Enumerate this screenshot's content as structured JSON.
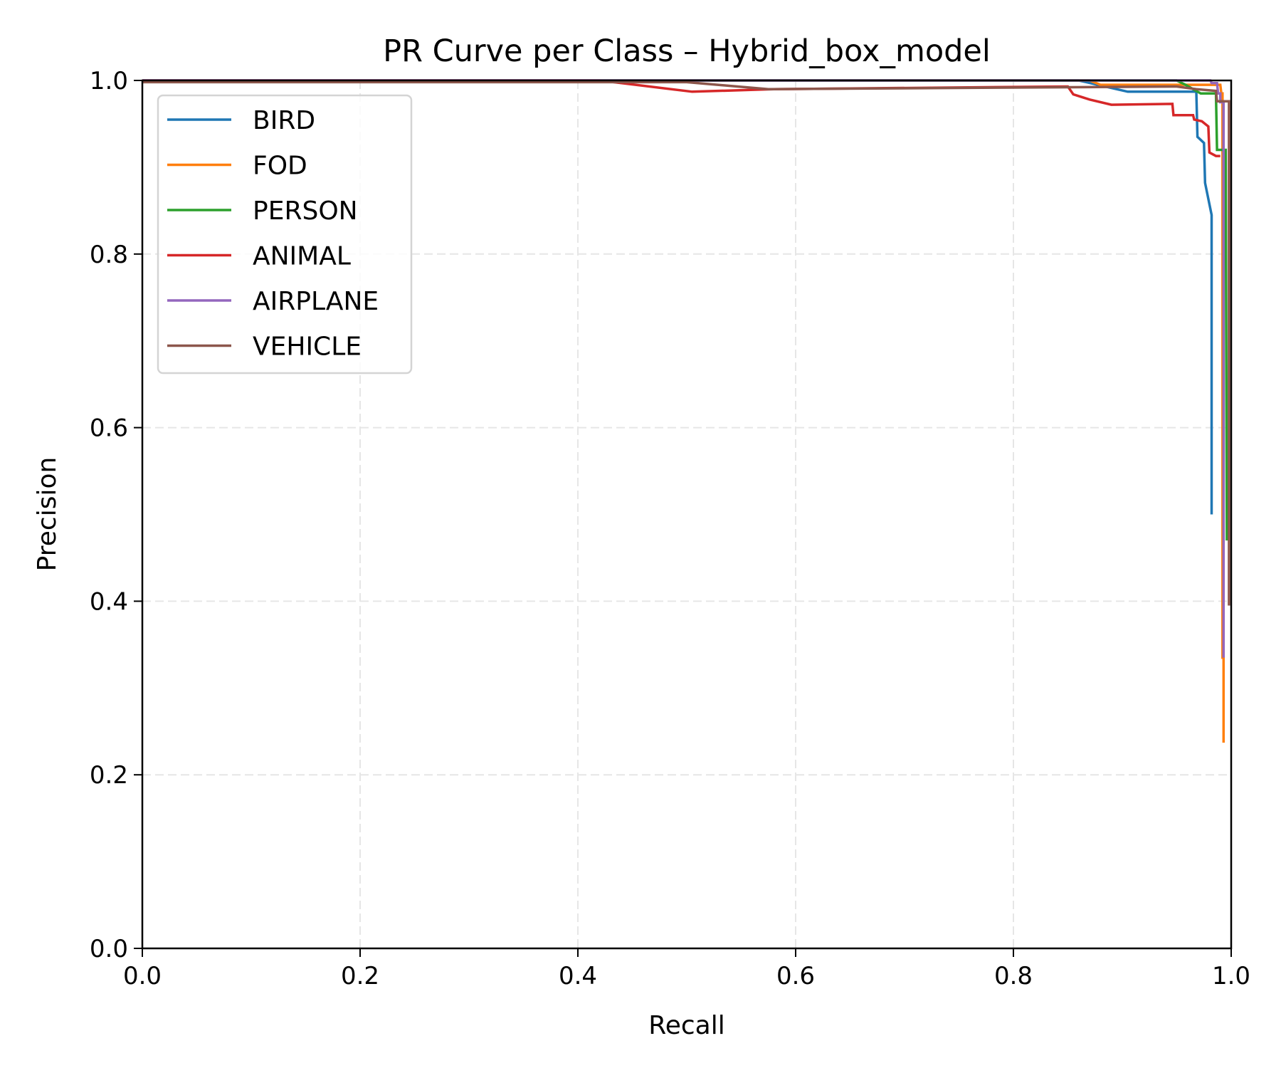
{
  "chart_data": {
    "type": "line",
    "title": "PR Curve per Class – Hybrid_box_model",
    "xlabel": "Recall",
    "ylabel": "Precision",
    "xlim": [
      0.0,
      1.0
    ],
    "ylim": [
      0.0,
      1.0
    ],
    "xticks": [
      "0.0",
      "0.2",
      "0.4",
      "0.6",
      "0.8",
      "1.0"
    ],
    "yticks": [
      "0.0",
      "0.2",
      "0.4",
      "0.6",
      "0.8",
      "1.0"
    ],
    "grid": true,
    "legend_position": "upper left",
    "series": [
      {
        "name": "BIRD",
        "color": "#1f77b4",
        "points": [
          [
            0.0,
            1.0
          ],
          [
            0.86,
            1.0
          ],
          [
            0.905,
            0.987
          ],
          [
            0.968,
            0.987
          ],
          [
            0.969,
            0.935
          ],
          [
            0.975,
            0.928
          ],
          [
            0.976,
            0.882
          ],
          [
            0.982,
            0.845
          ],
          [
            0.982,
            0.5
          ]
        ]
      },
      {
        "name": "FOD",
        "color": "#ff7f0e",
        "points": [
          [
            0.0,
            1.0
          ],
          [
            0.87,
            1.0
          ],
          [
            0.88,
            0.995
          ],
          [
            0.99,
            0.995
          ],
          [
            0.991,
            0.985
          ],
          [
            0.992,
            0.985
          ],
          [
            0.992,
            0.335
          ],
          [
            0.993,
            0.335
          ],
          [
            0.993,
            0.237
          ]
        ]
      },
      {
        "name": "PERSON",
        "color": "#2ca02c",
        "points": [
          [
            0.0,
            1.0
          ],
          [
            0.95,
            1.0
          ],
          [
            0.958,
            0.995
          ],
          [
            0.972,
            0.985
          ],
          [
            0.986,
            0.985
          ],
          [
            0.987,
            0.92
          ],
          [
            0.995,
            0.92
          ],
          [
            0.996,
            0.47
          ]
        ]
      },
      {
        "name": "ANIMAL",
        "color": "#d62728",
        "points": [
          [
            0.0,
            1.0
          ],
          [
            0.42,
            1.0
          ],
          [
            0.505,
            0.987
          ],
          [
            0.58,
            0.99
          ],
          [
            0.85,
            0.993
          ],
          [
            0.855,
            0.984
          ],
          [
            0.87,
            0.978
          ],
          [
            0.89,
            0.972
          ],
          [
            0.946,
            0.973
          ],
          [
            0.947,
            0.96
          ],
          [
            0.965,
            0.96
          ],
          [
            0.966,
            0.955
          ],
          [
            0.973,
            0.953
          ],
          [
            0.979,
            0.947
          ],
          [
            0.98,
            0.917
          ],
          [
            0.986,
            0.913
          ],
          [
            0.99,
            0.913
          ]
        ]
      },
      {
        "name": "AIRPLANE",
        "color": "#9467bd",
        "points": [
          [
            0.0,
            1.0
          ],
          [
            0.981,
            1.0
          ],
          [
            0.982,
            0.997
          ],
          [
            0.987,
            0.997
          ],
          [
            0.988,
            0.985
          ],
          [
            0.99,
            0.985
          ],
          [
            0.99,
            0.975
          ],
          [
            0.993,
            0.975
          ],
          [
            0.993,
            0.335
          ]
        ]
      },
      {
        "name": "VEHICLE",
        "color": "#8c564b",
        "points": [
          [
            0.0,
            0.998
          ],
          [
            0.5,
            0.998
          ],
          [
            0.575,
            0.99
          ],
          [
            0.95,
            0.993
          ],
          [
            0.968,
            0.99
          ],
          [
            0.986,
            0.988
          ],
          [
            0.987,
            0.976
          ],
          [
            0.998,
            0.976
          ],
          [
            0.998,
            0.395
          ]
        ]
      }
    ]
  }
}
